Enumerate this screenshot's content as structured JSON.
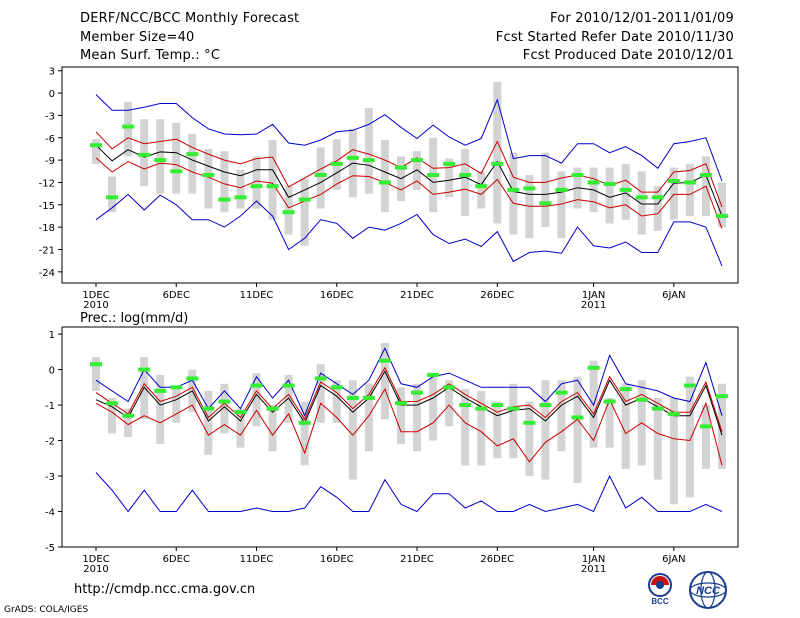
{
  "header": {
    "title": "DERF/NCC/BCC Monthly Forecast",
    "member_size": "Member Size=40",
    "variable": "Mean Surf. Temp.: °C",
    "period": "For 2010/12/01-2011/01/09",
    "started": "Fcst Started Refer Date 2010/11/30",
    "produced": "Fcst Produced Date 2010/12/01"
  },
  "footer": {
    "url": "http://cmdp.ncc.cma.gov.cn",
    "credit": "GrADS: COLA/IGES",
    "logo_bcc_text": "BCC",
    "logo_ncc_text": "NCC"
  },
  "colors": {
    "ensemble_mean": "#000000",
    "spread_band": "#cc0000",
    "extremes": "#0000cc",
    "box": "#d3d3d3",
    "member_mark": "#33ee33"
  },
  "chart_data": [
    {
      "type": "line",
      "title": "Mean Surf. Temp.: °C",
      "x": [
        1,
        2,
        3,
        4,
        5,
        6,
        7,
        8,
        9,
        10,
        11,
        12,
        13,
        14,
        15,
        16,
        17,
        18,
        19,
        20,
        21,
        22,
        23,
        24,
        25,
        26,
        27,
        28,
        29,
        30,
        31,
        32,
        33,
        34,
        35,
        36,
        37,
        38,
        39,
        40
      ],
      "x_ticks": [
        {
          "x": 1,
          "label": "1DEC",
          "sub": "2010"
        },
        {
          "x": 6,
          "label": "6DEC"
        },
        {
          "x": 11,
          "label": "11DEC"
        },
        {
          "x": 16,
          "label": "16DEC"
        },
        {
          "x": 21,
          "label": "21DEC"
        },
        {
          "x": 26,
          "label": "26DEC"
        },
        {
          "x": 32,
          "label": "1JAN",
          "sub": "2011"
        },
        {
          "x": 37,
          "label": "6JAN"
        }
      ],
      "ylim": [
        -25.5,
        3.5
      ],
      "y_ticks": [
        3,
        0,
        -3,
        -6,
        -9,
        -12,
        -15,
        -18,
        -21,
        -24
      ],
      "series": [
        {
          "name": "mean",
          "values": [
            -7,
            -9.1,
            -7.6,
            -8.6,
            -7.9,
            -8.0,
            -9.0,
            -9.8,
            -10.6,
            -11.1,
            -10.3,
            -10.3,
            -14.0,
            -13.0,
            -12.0,
            -10.7,
            -9.4,
            -9.7,
            -10.6,
            -11.5,
            -10.3,
            -12.0,
            -11.7,
            -11.3,
            -12.3,
            -9.2,
            -13.2,
            -13.6,
            -13.6,
            -13.3,
            -12.7,
            -13.0,
            -14.0,
            -13.4,
            -14.9,
            -14.9,
            -12.1,
            -12.0,
            -11.0,
            -16.5
          ]
        },
        {
          "name": "upper",
          "values": [
            -5.2,
            -7.5,
            -6.0,
            -6.8,
            -6.5,
            -6.2,
            -7.3,
            -8.2,
            -9.0,
            -9.5,
            -8.8,
            -8.6,
            -12.6,
            -11.4,
            -10.2,
            -9.1,
            -7.6,
            -8.2,
            -9.0,
            -10.0,
            -8.7,
            -10.1,
            -10.0,
            -9.5,
            -10.8,
            -6.5,
            -11.3,
            -12.0,
            -12.0,
            -11.4,
            -11.0,
            -11.5,
            -12.4,
            -11.7,
            -13.3,
            -13.3,
            -10.6,
            -10.4,
            -9.5,
            -15.3
          ]
        },
        {
          "name": "lower",
          "values": [
            -8.7,
            -10.6,
            -9.2,
            -10.2,
            -9.4,
            -9.6,
            -10.6,
            -11.3,
            -12.2,
            -12.7,
            -11.8,
            -12.1,
            -15.4,
            -14.5,
            -13.6,
            -12.2,
            -11.1,
            -11.2,
            -12.0,
            -13.0,
            -11.8,
            -13.6,
            -13.3,
            -12.9,
            -13.6,
            -11.6,
            -14.8,
            -15.2,
            -15.2,
            -14.9,
            -14.3,
            -14.6,
            -15.4,
            -15.0,
            -16.5,
            -16.2,
            -13.6,
            -13.6,
            -12.5,
            -18.2
          ]
        },
        {
          "name": "max",
          "values": [
            -0.2,
            -2.3,
            -2.3,
            -1.9,
            -1.4,
            -1.4,
            -3.3,
            -4.8,
            -5.5,
            -5.6,
            -5.5,
            -4.2,
            -6.7,
            -7.0,
            -6.3,
            -5.2,
            -5.0,
            -4.2,
            -2.9,
            -4.6,
            -6.1,
            -4.3,
            -5.9,
            -7.0,
            -6.1,
            -0.9,
            -8.8,
            -8.4,
            -8.4,
            -9.4,
            -6.8,
            -6.8,
            -8.0,
            -7.2,
            -8.4,
            -10.1,
            -6.8,
            -6.5,
            -6.0,
            -11.8
          ]
        },
        {
          "name": "min",
          "values": [
            -17,
            -15.4,
            -13.6,
            -15.7,
            -13.7,
            -15.0,
            -17.0,
            -17.0,
            -18.0,
            -16.5,
            -14.5,
            -16.5,
            -21.0,
            -19.5,
            -17.0,
            -17.5,
            -19.5,
            -18.0,
            -18.4,
            -17.5,
            -16.3,
            -19.0,
            -20.2,
            -19.6,
            -20.6,
            -18.6,
            -22.6,
            -21.4,
            -21.2,
            -21.5,
            -18.0,
            -20.5,
            -20.8,
            -20.0,
            -21.4,
            -21.4,
            -17.3,
            -17.3,
            -18.0,
            -23.2
          ]
        },
        {
          "name": "member",
          "values": [
            -7.0,
            -14.0,
            -4.5,
            -8.3,
            -9.0,
            -10.5,
            -8.2,
            -11.0,
            -14.3,
            -14.0,
            -12.5,
            -12.5,
            -16.0,
            -14.3,
            -11.0,
            -9.5,
            -8.7,
            -9.0,
            -12.0,
            -10.0,
            -9.0,
            -11.0,
            -9.5,
            -11.0,
            -12.5,
            -9.5,
            -13.0,
            -12.8,
            -14.8,
            -13.0,
            -11.0,
            -12.0,
            -12.2,
            -13.0,
            -14.0,
            -14.0,
            -11.8,
            -12.0,
            -11.0,
            -16.5
          ]
        },
        {
          "name": "box_high",
          "values": [
            -6.2,
            -11.2,
            -1.2,
            -3.5,
            -3.5,
            -4.0,
            -5.5,
            -7.5,
            -7.8,
            -10.3,
            -8.5,
            -6.3,
            -12.5,
            -11.5,
            -7.3,
            -6.2,
            -4.8,
            -2.0,
            -6.3,
            -8.5,
            -7.8,
            -6.0,
            -8.8,
            -7.5,
            -10.5,
            1.5,
            -8.0,
            -11.0,
            -8.0,
            -10.5,
            -10.0,
            -10.0,
            -10.0,
            -9.5,
            -10.5,
            -12.5,
            -10.0,
            -9.5,
            -8.5,
            -12.0
          ]
        },
        {
          "name": "box_low",
          "values": [
            -9.5,
            -16.0,
            -8.5,
            -12.5,
            -13.5,
            -13.5,
            -13.5,
            -15.5,
            -16.0,
            -15.5,
            -15.5,
            -17.0,
            -19.0,
            -20.5,
            -15.5,
            -13.0,
            -14.0,
            -13.5,
            -16.0,
            -14.5,
            -13.0,
            -16.0,
            -14.0,
            -16.5,
            -15.5,
            -17.5,
            -19.0,
            -19.5,
            -18.0,
            -19.5,
            -15.5,
            -16.0,
            -17.5,
            -17.0,
            -19.0,
            -18.5,
            -17.0,
            -16.5,
            -16.5,
            -18.0
          ]
        }
      ]
    },
    {
      "type": "line",
      "title": "Prec.: log(mm/d)",
      "x": [
        1,
        2,
        3,
        4,
        5,
        6,
        7,
        8,
        9,
        10,
        11,
        12,
        13,
        14,
        15,
        16,
        17,
        18,
        19,
        20,
        21,
        22,
        23,
        24,
        25,
        26,
        27,
        28,
        29,
        30,
        31,
        32,
        33,
        34,
        35,
        36,
        37,
        38,
        39,
        40
      ],
      "x_ticks": [
        {
          "x": 1,
          "label": "1DEC",
          "sub": "2010"
        },
        {
          "x": 6,
          "label": "6DEC"
        },
        {
          "x": 11,
          "label": "11DEC"
        },
        {
          "x": 16,
          "label": "16DEC"
        },
        {
          "x": 21,
          "label": "21DEC"
        },
        {
          "x": 26,
          "label": "26DEC"
        },
        {
          "x": 32,
          "label": "1JAN",
          "sub": "2011"
        },
        {
          "x": 37,
          "label": "6JAN"
        }
      ],
      "ylim": [
        -5,
        1.2
      ],
      "y_ticks": [
        1,
        0,
        -1,
        -2,
        -3,
        -4,
        -5
      ],
      "series": [
        {
          "name": "mean",
          "values": [
            -0.85,
            -1.05,
            -1.35,
            -0.5,
            -1.0,
            -0.85,
            -0.6,
            -1.45,
            -1.05,
            -1.45,
            -0.7,
            -1.2,
            -0.8,
            -1.5,
            -0.45,
            -0.75,
            -1.2,
            -0.8,
            -0.05,
            -1.0,
            -1.0,
            -0.8,
            -0.5,
            -0.8,
            -1.05,
            -1.3,
            -1.15,
            -1.1,
            -1.45,
            -1.0,
            -0.75,
            -1.35,
            -0.3,
            -1.0,
            -0.8,
            -1.05,
            -1.3,
            -1.3,
            -0.45,
            -1.85
          ]
        },
        {
          "name": "upper",
          "values": [
            -0.65,
            -0.95,
            -1.25,
            -0.4,
            -0.9,
            -0.75,
            -0.5,
            -1.35,
            -0.95,
            -1.35,
            -0.6,
            -1.1,
            -0.7,
            -1.4,
            -0.35,
            -0.65,
            -1.1,
            -0.7,
            0.05,
            -0.9,
            -0.9,
            -0.7,
            -0.4,
            -0.7,
            -0.95,
            -1.2,
            -1.05,
            -1.0,
            -1.35,
            -0.9,
            -0.65,
            -1.25,
            -0.2,
            -0.9,
            -0.7,
            -0.95,
            -1.2,
            -1.2,
            -0.35,
            -1.75
          ]
        },
        {
          "name": "lower",
          "values": [
            -0.95,
            -1.2,
            -1.55,
            -1.3,
            -1.5,
            -1.25,
            -1.0,
            -1.85,
            -1.55,
            -1.85,
            -1.15,
            -1.85,
            -1.25,
            -2.35,
            -0.95,
            -1.35,
            -1.85,
            -1.3,
            -0.55,
            -1.75,
            -1.75,
            -1.5,
            -1.0,
            -1.5,
            -1.75,
            -2.15,
            -1.95,
            -2.6,
            -2.05,
            -1.75,
            -1.4,
            -2.0,
            -0.85,
            -1.8,
            -1.5,
            -1.8,
            -1.95,
            -2.0,
            -0.95,
            -2.7
          ]
        },
        {
          "name": "max",
          "values": [
            -0.3,
            -0.6,
            -0.9,
            0.0,
            -0.5,
            -0.5,
            -0.3,
            -1.1,
            -0.6,
            -1.1,
            -0.2,
            -0.8,
            -0.3,
            -1.3,
            -0.1,
            -0.4,
            -0.7,
            -0.3,
            0.6,
            -0.4,
            -0.5,
            -0.2,
            -0.1,
            -0.3,
            -0.5,
            -0.5,
            -0.5,
            -0.5,
            -0.9,
            -0.4,
            -0.3,
            -1.0,
            0.4,
            -0.4,
            -0.5,
            -0.6,
            -0.8,
            -0.9,
            0.2,
            -1.3
          ]
        },
        {
          "name": "min",
          "values": [
            -2.9,
            -3.4,
            -4.0,
            -3.4,
            -4.0,
            -4.0,
            -3.4,
            -4.0,
            -4.0,
            -4.0,
            -3.9,
            -4.0,
            -4.0,
            -3.9,
            -3.3,
            -3.6,
            -4.0,
            -4.0,
            -3.1,
            -3.8,
            -4.0,
            -3.5,
            -3.5,
            -3.9,
            -3.7,
            -4.0,
            -4.0,
            -3.8,
            -4.0,
            -3.9,
            -3.8,
            -4.0,
            -3.0,
            -3.9,
            -3.6,
            -4.0,
            -4.0,
            -4.0,
            -3.8,
            -4.0
          ]
        },
        {
          "name": "member",
          "values": [
            0.15,
            -0.95,
            -1.3,
            0.0,
            -0.6,
            -0.5,
            -0.25,
            -1.1,
            -0.9,
            -1.2,
            -0.45,
            -1.1,
            -0.45,
            -1.5,
            -0.25,
            -0.5,
            -0.8,
            -0.8,
            0.25,
            -0.95,
            -0.65,
            -0.15,
            -0.5,
            -1.0,
            -1.1,
            -1.0,
            -1.1,
            -1.5,
            -1.0,
            -0.65,
            -1.35,
            0.05,
            -0.9,
            -0.55,
            -0.85,
            -1.1,
            -1.25,
            -0.45,
            -1.6,
            -0.75
          ]
        },
        {
          "name": "box_high",
          "values": [
            0.35,
            -0.8,
            -1.1,
            0.35,
            -0.15,
            -0.55,
            0.0,
            -0.6,
            -0.4,
            -1.1,
            -0.1,
            -1.0,
            -0.15,
            -0.9,
            0.15,
            -0.3,
            -0.3,
            -0.4,
            0.75,
            -0.5,
            -0.4,
            -0.2,
            -0.3,
            -0.55,
            -0.6,
            -0.9,
            -0.4,
            -0.9,
            -0.3,
            -0.3,
            -0.2,
            0.25,
            -0.8,
            -0.4,
            -0.3,
            -0.8,
            -0.8,
            -0.2,
            -1.0,
            -0.4
          ]
        },
        {
          "name": "box_low",
          "values": [
            -0.6,
            -1.8,
            -1.9,
            -1.4,
            -2.1,
            -1.5,
            -1.2,
            -2.4,
            -1.8,
            -2.2,
            -1.6,
            -2.3,
            -1.5,
            -2.7,
            -1.5,
            -1.5,
            -3.1,
            -2.3,
            -1.4,
            -2.1,
            -2.3,
            -2.0,
            -1.6,
            -2.7,
            -2.7,
            -2.5,
            -2.5,
            -3.0,
            -3.1,
            -2.3,
            -3.2,
            -2.2,
            -2.2,
            -2.8,
            -2.7,
            -3.1,
            -3.8,
            -3.6,
            -2.8,
            -2.8
          ]
        }
      ]
    }
  ]
}
